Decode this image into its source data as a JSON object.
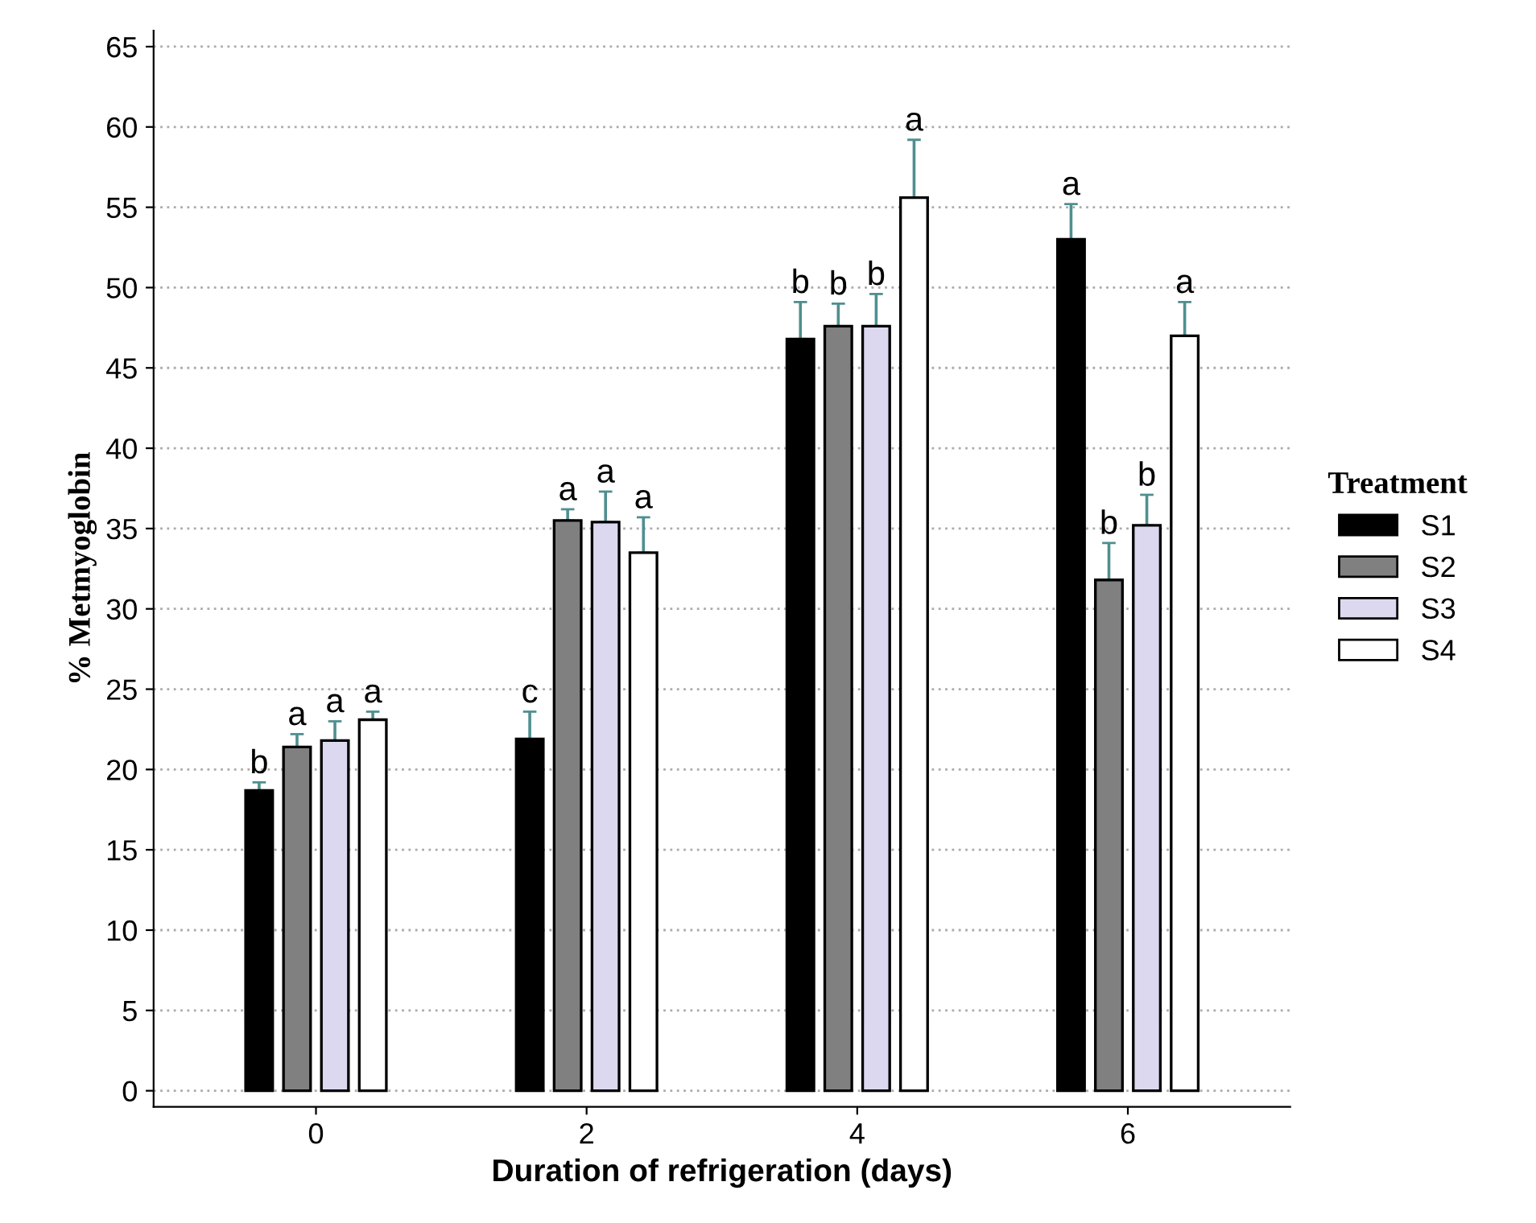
{
  "chart_data": {
    "type": "bar",
    "xlabel": "Duration of refrigeration (days)",
    "ylabel": "% Metmyoglobin",
    "legend_title": "Treatment",
    "categories": [
      "0",
      "2",
      "4",
      "6"
    ],
    "series": [
      {
        "name": "S1",
        "color": "#000000",
        "values": [
          18.7,
          21.9,
          46.8,
          53.0
        ],
        "errors": [
          [
            18.7,
            19.2
          ],
          [
            21.9,
            23.6
          ],
          [
            46.8,
            49.1
          ],
          [
            53.0,
            55.2
          ]
        ]
      },
      {
        "name": "S2",
        "color": "#808080",
        "values": [
          21.4,
          35.5,
          47.6,
          31.8
        ],
        "errors": [
          [
            21.4,
            22.2
          ],
          [
            35.5,
            36.2
          ],
          [
            47.6,
            49.0
          ],
          [
            31.8,
            34.1
          ]
        ]
      },
      {
        "name": "S3",
        "color": "#dcd8f0",
        "values": [
          21.8,
          35.4,
          47.6,
          35.2
        ],
        "errors": [
          [
            21.8,
            23.0
          ],
          [
            35.4,
            37.3
          ],
          [
            47.6,
            49.6
          ],
          [
            35.2,
            37.1
          ]
        ]
      },
      {
        "name": "S4",
        "color": "#ffffff",
        "values": [
          23.1,
          33.5,
          55.6,
          47.0
        ],
        "errors": [
          [
            23.1,
            23.6
          ],
          [
            33.5,
            35.7
          ],
          [
            55.6,
            59.2
          ],
          [
            47.0,
            49.1
          ]
        ]
      }
    ],
    "ylim": [
      -1,
      66
    ],
    "yticks": [
      0,
      5,
      10,
      15,
      20,
      25,
      30,
      35,
      40,
      45,
      50,
      55,
      60,
      65
    ],
    "grid": "y",
    "legend": "right",
    "annotations": [
      "b",
      "a",
      "a",
      "a",
      "c",
      "a",
      "a",
      "a",
      "b",
      "b",
      "b",
      "a",
      "a",
      "b",
      "b",
      "a"
    ]
  }
}
